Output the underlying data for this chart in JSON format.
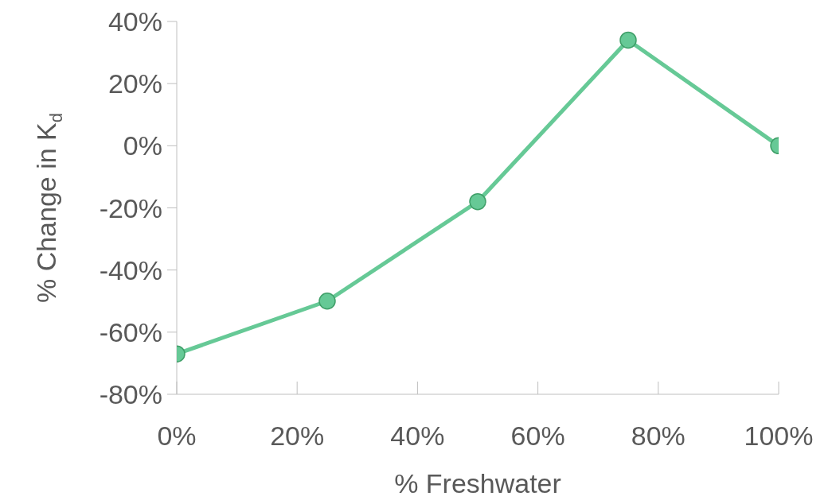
{
  "chart_data": {
    "type": "line",
    "xlabel": "% Freshwater",
    "ylabel": "% Change in K$_{d}$",
    "x": [
      0,
      25,
      50,
      75,
      100
    ],
    "series": [
      {
        "color": "#66c996",
        "values": [
          -67,
          -50,
          -18,
          34,
          0
        ]
      }
    ],
    "xlim": [
      0,
      100
    ],
    "ylim": [
      -80,
      40
    ],
    "xticks": [
      {
        "value": 0,
        "label": "0%"
      },
      {
        "value": 20,
        "label": "20%"
      },
      {
        "value": 40,
        "label": "40%"
      },
      {
        "value": 60,
        "label": "60%"
      },
      {
        "value": 80,
        "label": "80%"
      },
      {
        "value": 100,
        "label": "100%"
      }
    ],
    "yticks": [
      {
        "value": -80,
        "label": "-80%"
      },
      {
        "value": -60,
        "label": "-60%"
      },
      {
        "value": -40,
        "label": "-40%"
      },
      {
        "value": -20,
        "label": "-20%"
      },
      {
        "value": 0,
        "label": "0%"
      },
      {
        "value": 20,
        "label": "20%"
      },
      {
        "value": 40,
        "label": "40%"
      }
    ],
    "grid": false,
    "marker": "circle",
    "line_style": "solid",
    "legend": false
  }
}
